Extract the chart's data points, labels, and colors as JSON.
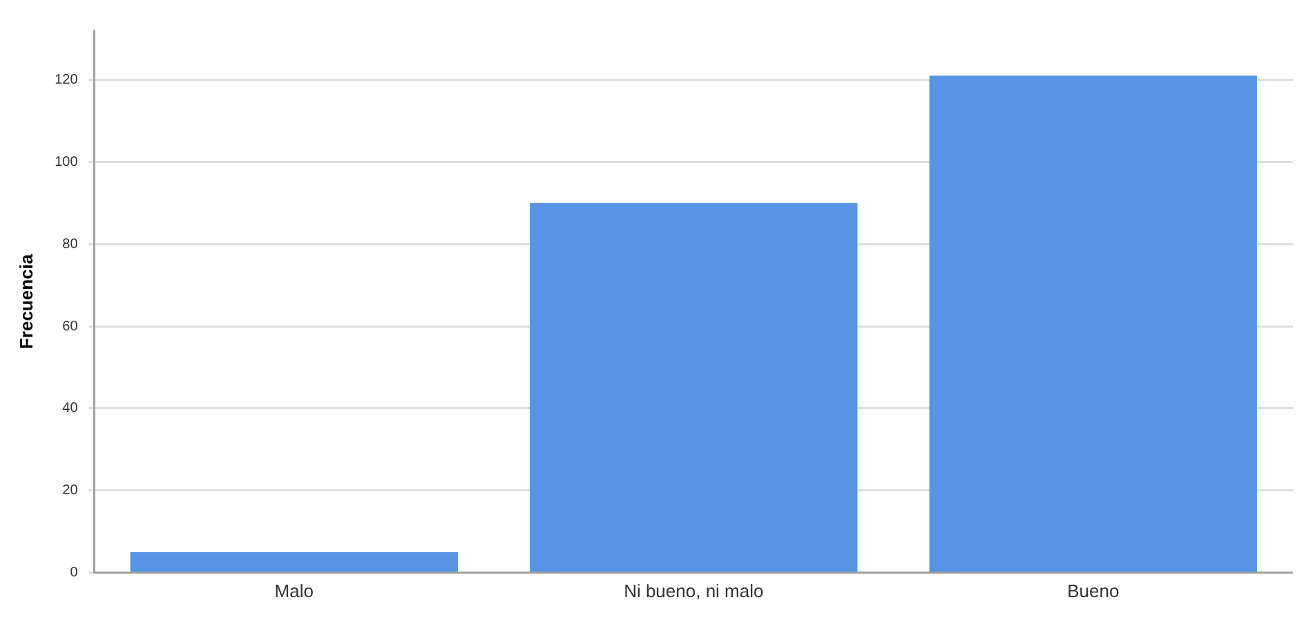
{
  "chart_data": {
    "type": "bar",
    "ylabel": "Frecuencia",
    "categories": [
      "Malo",
      "Ni bueno, ni malo",
      "Bueno"
    ],
    "values": [
      5,
      90,
      121
    ],
    "color": "#5595e3",
    "ylim": [
      0,
      132
    ],
    "yticks": [
      0,
      20,
      40,
      60,
      80,
      100,
      120
    ],
    "grid": "y",
    "legend": false
  }
}
